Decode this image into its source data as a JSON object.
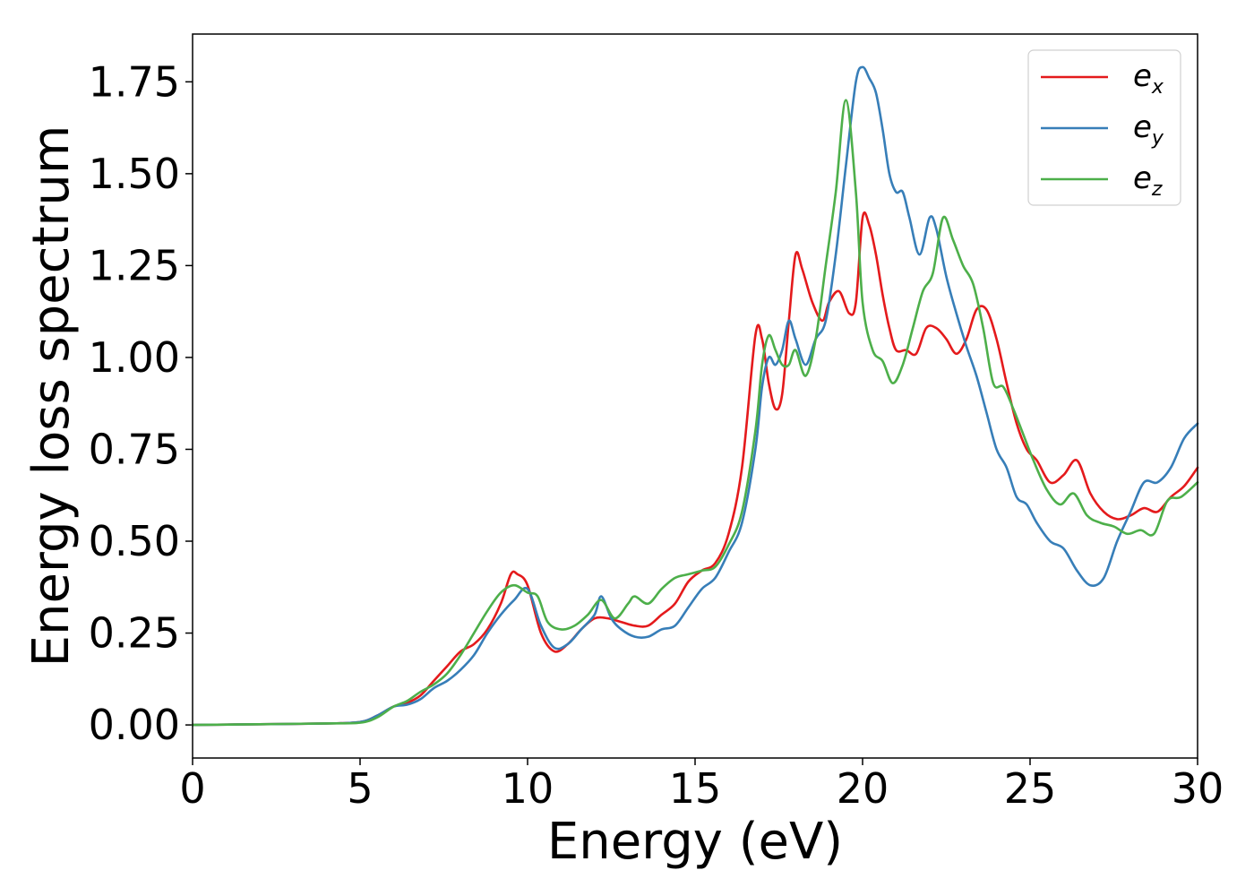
{
  "chart_data": {
    "type": "line",
    "title": "",
    "xlabel": "Energy (eV)",
    "ylabel": "Energy loss spectrum",
    "xlim": [
      0,
      30
    ],
    "ylim": [
      -0.09,
      1.88
    ],
    "xticks": [
      0,
      5,
      10,
      15,
      20,
      25,
      30
    ],
    "xtick_labels": [
      "0",
      "5",
      "10",
      "15",
      "20",
      "25",
      "30"
    ],
    "yticks": [
      0,
      0.25,
      0.5,
      0.75,
      1.0,
      1.25,
      1.5,
      1.75
    ],
    "ytick_labels": [
      "0.00",
      "0.25",
      "0.50",
      "0.75",
      "1.00",
      "1.25",
      "1.50",
      "1.75"
    ],
    "grid": false,
    "legend_position": "top-right",
    "series": [
      {
        "name": "e_x",
        "legend_base": "e",
        "legend_sub": "x",
        "color": "#e41a1c",
        "x": [
          0,
          2,
          4,
          5,
          5.5,
          6,
          6.4,
          6.8,
          7.2,
          7.6,
          8,
          8.4,
          8.8,
          9.2,
          9.5,
          9.7,
          10,
          10.4,
          10.8,
          11.2,
          11.6,
          12,
          12.4,
          12.8,
          13.2,
          13.6,
          14,
          14.4,
          14.8,
          15.2,
          15.6,
          16,
          16.4,
          16.8,
          17,
          17.2,
          17.4,
          17.6,
          17.8,
          18,
          18.2,
          18.5,
          18.8,
          19,
          19.3,
          19.6,
          19.8,
          20,
          20.2,
          20.4,
          20.6,
          20.8,
          21,
          21.3,
          21.6,
          21.9,
          22.2,
          22.5,
          22.8,
          23.1,
          23.4,
          23.7,
          24,
          24.3,
          24.6,
          24.9,
          25.2,
          25.6,
          26,
          26.4,
          26.8,
          27.2,
          27.6,
          28,
          28.4,
          28.8,
          29.2,
          29.6,
          30
        ],
        "y": [
          0.0,
          0.002,
          0.004,
          0.008,
          0.025,
          0.05,
          0.06,
          0.08,
          0.12,
          0.16,
          0.2,
          0.22,
          0.26,
          0.33,
          0.41,
          0.41,
          0.38,
          0.25,
          0.2,
          0.22,
          0.26,
          0.29,
          0.29,
          0.28,
          0.27,
          0.27,
          0.3,
          0.33,
          0.39,
          0.42,
          0.44,
          0.52,
          0.7,
          1.06,
          1.05,
          0.93,
          0.86,
          0.9,
          1.1,
          1.28,
          1.24,
          1.15,
          1.1,
          1.15,
          1.18,
          1.12,
          1.15,
          1.38,
          1.36,
          1.28,
          1.17,
          1.08,
          1.02,
          1.02,
          1.01,
          1.08,
          1.08,
          1.05,
          1.01,
          1.05,
          1.13,
          1.13,
          1.05,
          0.93,
          0.82,
          0.75,
          0.72,
          0.66,
          0.68,
          0.72,
          0.63,
          0.58,
          0.56,
          0.57,
          0.59,
          0.58,
          0.62,
          0.65,
          0.7
        ]
      },
      {
        "name": "e_y",
        "legend_base": "e",
        "legend_sub": "y",
        "color": "#377eb8",
        "x": [
          0,
          2,
          4,
          5,
          5.5,
          6,
          6.4,
          6.8,
          7.2,
          7.6,
          8,
          8.4,
          8.8,
          9.2,
          9.6,
          10,
          10.4,
          10.8,
          11.2,
          11.6,
          12,
          12.2,
          12.5,
          12.8,
          13.2,
          13.6,
          14,
          14.4,
          14.8,
          15.2,
          15.6,
          16,
          16.4,
          16.8,
          17,
          17.2,
          17.4,
          17.6,
          17.8,
          18,
          18.3,
          18.6,
          18.9,
          19.2,
          19.5,
          19.8,
          20,
          20.2,
          20.4,
          20.6,
          20.8,
          21,
          21.2,
          21.4,
          21.7,
          22,
          22.2,
          22.5,
          22.8,
          23.1,
          23.4,
          23.7,
          24,
          24.3,
          24.6,
          24.9,
          25.2,
          25.6,
          26,
          26.4,
          26.8,
          27.2,
          27.6,
          28,
          28.4,
          28.8,
          29.2,
          29.6,
          30
        ],
        "y": [
          0.0,
          0.002,
          0.004,
          0.008,
          0.025,
          0.05,
          0.055,
          0.07,
          0.1,
          0.12,
          0.15,
          0.19,
          0.25,
          0.3,
          0.34,
          0.37,
          0.27,
          0.21,
          0.22,
          0.26,
          0.3,
          0.35,
          0.29,
          0.26,
          0.24,
          0.24,
          0.26,
          0.27,
          0.32,
          0.37,
          0.4,
          0.47,
          0.55,
          0.75,
          0.92,
          1.0,
          0.98,
          1.02,
          1.1,
          1.05,
          0.98,
          1.05,
          1.1,
          1.28,
          1.52,
          1.75,
          1.79,
          1.76,
          1.72,
          1.62,
          1.5,
          1.45,
          1.45,
          1.38,
          1.28,
          1.38,
          1.35,
          1.22,
          1.12,
          1.03,
          0.95,
          0.85,
          0.75,
          0.7,
          0.62,
          0.6,
          0.55,
          0.5,
          0.48,
          0.42,
          0.38,
          0.4,
          0.5,
          0.58,
          0.66,
          0.66,
          0.7,
          0.78,
          0.82
        ]
      },
      {
        "name": "e_z",
        "legend_base": "e",
        "legend_sub": "z",
        "color": "#4daf4a",
        "x": [
          0,
          2,
          4,
          5,
          5.5,
          6,
          6.4,
          6.8,
          7.2,
          7.6,
          8,
          8.4,
          8.8,
          9.2,
          9.6,
          10,
          10.3,
          10.6,
          11,
          11.4,
          11.8,
          12.2,
          12.6,
          13,
          13.2,
          13.6,
          14,
          14.4,
          14.8,
          15.2,
          15.6,
          16,
          16.4,
          16.8,
          17,
          17.2,
          17.4,
          17.6,
          17.8,
          18,
          18.3,
          18.6,
          18.9,
          19.2,
          19.5,
          19.8,
          20,
          20.3,
          20.6,
          20.9,
          21.2,
          21.5,
          21.8,
          22.1,
          22.4,
          22.7,
          23,
          23.3,
          23.6,
          23.9,
          24.2,
          24.5,
          24.8,
          25.1,
          25.5,
          25.9,
          26.3,
          26.7,
          27.1,
          27.5,
          27.9,
          28.3,
          28.7,
          29.1,
          29.5,
          30
        ],
        "y": [
          0.0,
          0.002,
          0.004,
          0.006,
          0.02,
          0.05,
          0.065,
          0.09,
          0.11,
          0.14,
          0.19,
          0.25,
          0.31,
          0.36,
          0.38,
          0.36,
          0.35,
          0.28,
          0.26,
          0.27,
          0.3,
          0.34,
          0.29,
          0.33,
          0.35,
          0.33,
          0.37,
          0.4,
          0.41,
          0.42,
          0.43,
          0.49,
          0.58,
          0.8,
          0.98,
          1.06,
          1.02,
          0.98,
          0.98,
          1.02,
          0.95,
          1.05,
          1.25,
          1.45,
          1.7,
          1.45,
          1.15,
          1.02,
          0.99,
          0.93,
          0.98,
          1.08,
          1.18,
          1.23,
          1.38,
          1.32,
          1.25,
          1.2,
          1.08,
          0.93,
          0.92,
          0.86,
          0.79,
          0.72,
          0.64,
          0.6,
          0.63,
          0.57,
          0.55,
          0.54,
          0.52,
          0.53,
          0.52,
          0.61,
          0.62,
          0.66
        ]
      }
    ]
  }
}
